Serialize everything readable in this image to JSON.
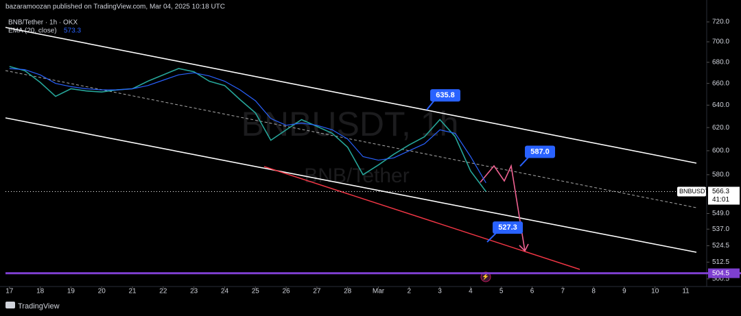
{
  "header": {
    "publisher": "bazaramoozan published on TradingView.com, Mar 04, 2025 10:18 UTC",
    "footer": "TradingView"
  },
  "chart_data": {
    "type": "line",
    "title": "BNB/Tether · 1h · OKX",
    "watermark": "BNBUSDT, 1h",
    "watermark_sub": "BNB/Tether",
    "log_scale": true,
    "xlim": [
      -0.13,
      22.68
    ],
    "xticks": [
      {
        "value": 0,
        "label": "17"
      },
      {
        "value": 1,
        "label": "18"
      },
      {
        "value": 2,
        "label": "19"
      },
      {
        "value": 3,
        "label": "20"
      },
      {
        "value": 4,
        "label": "21"
      },
      {
        "value": 5,
        "label": "22"
      },
      {
        "value": 6,
        "label": "23"
      },
      {
        "value": 7,
        "label": "24"
      },
      {
        "value": 8,
        "label": "25"
      },
      {
        "value": 9,
        "label": "26"
      },
      {
        "value": 10,
        "label": "27"
      },
      {
        "value": 11,
        "label": "28"
      },
      {
        "value": 12,
        "label": "Mar"
      },
      {
        "value": 13,
        "label": "2"
      },
      {
        "value": 14,
        "label": "3"
      },
      {
        "value": 15,
        "label": "4"
      },
      {
        "value": 16,
        "label": "5"
      },
      {
        "value": 17,
        "label": "6"
      },
      {
        "value": 18,
        "label": "7"
      },
      {
        "value": 19,
        "label": "8"
      },
      {
        "value": 20,
        "label": "9"
      },
      {
        "value": 21,
        "label": "10"
      },
      {
        "value": 22,
        "label": "11"
      }
    ],
    "ylim": [
      495.1,
      727
    ],
    "yticks": [
      {
        "value": 720,
        "label": "720.0"
      },
      {
        "value": 700,
        "label": "700.0"
      },
      {
        "value": 680,
        "label": "680.0"
      },
      {
        "value": 660,
        "label": "660.0"
      },
      {
        "value": 640,
        "label": "640.0"
      },
      {
        "value": 620,
        "label": "620.0"
      },
      {
        "value": 600,
        "label": "600.0"
      },
      {
        "value": 580,
        "label": "580.0"
      },
      {
        "value": 549,
        "label": "549.0"
      },
      {
        "value": 537,
        "label": "537.0"
      },
      524.5,
      512.5,
      500.5
    ],
    "x": [
      0,
      0.5,
      1,
      1.5,
      2,
      2.5,
      3,
      3.5,
      4,
      4.5,
      5,
      5.5,
      6,
      6.5,
      7,
      7.5,
      8,
      8.5,
      9,
      9.5,
      10,
      10.5,
      11,
      11.5,
      12,
      12.5,
      13,
      13.5,
      14,
      14.5,
      15,
      15.5
    ],
    "series": [
      {
        "name": "BNBUSDT",
        "color": "#26a69a",
        "values": [
          676,
          672,
          661,
          648,
          655,
          653,
          652,
          654,
          655,
          662,
          668,
          674,
          671,
          662,
          658,
          645,
          633,
          609,
          618,
          627,
          621,
          615,
          603,
          580,
          588,
          597,
          605,
          612,
          627,
          612,
          583,
          566.3
        ]
      },
      {
        "name": "EMA (20, close)",
        "color": "#2962ff",
        "current": 573.3,
        "values": [
          674,
          673,
          668,
          660,
          657,
          655,
          654,
          654,
          655,
          658,
          663,
          668,
          670,
          667,
          662,
          654,
          644,
          628,
          622,
          624,
          622,
          618,
          610,
          595,
          592,
          594,
          600,
          606,
          618,
          615,
          595,
          573.3
        ]
      }
    ],
    "annotations": [
      635.8,
      {
        "value": 587,
        "label": "587.0"
      },
      527.3
    ],
    "last_price": 566.3,
    "last_price_symbol": "BNBUSDT",
    "countdown": "41:01",
    "level": {
      "value": 504.5,
      "color": "#7e3fd0"
    }
  }
}
